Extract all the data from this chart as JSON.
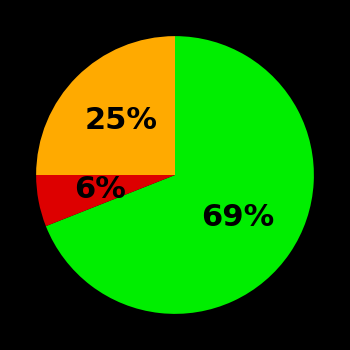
{
  "slices": [
    69,
    6,
    25
  ],
  "colors": [
    "#00ee00",
    "#dd0000",
    "#ffaa00"
  ],
  "labels": [
    "69%",
    "6%",
    "25%"
  ],
  "label_offsets": [
    0.55,
    0.55,
    0.55
  ],
  "background_color": "#000000",
  "label_fontsize": 22,
  "label_fontweight": "bold",
  "startangle": 90,
  "counterclock": false,
  "figsize": [
    3.5,
    3.5
  ],
  "dpi": 100
}
